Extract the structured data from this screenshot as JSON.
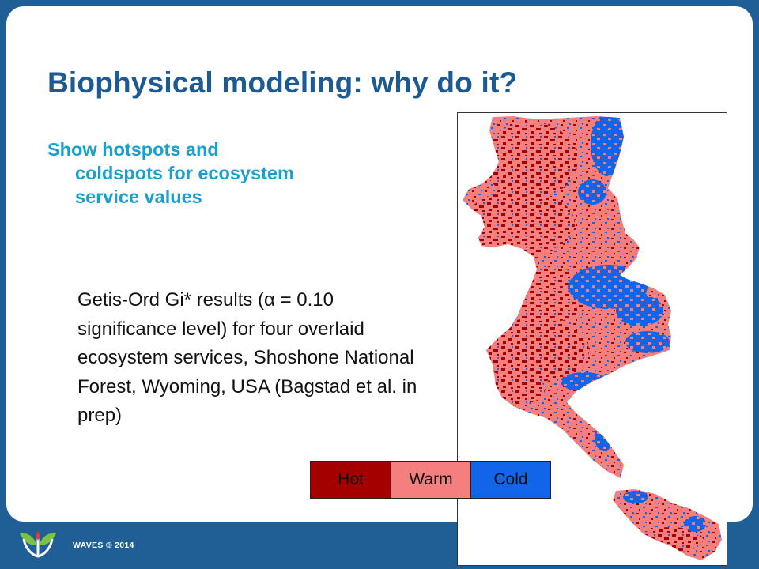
{
  "slide": {
    "title": "Biophysical modeling: why do it?",
    "subtitle": "Show hotspots and coldspots for ecosystem service values",
    "caption": "Getis-Ord Gi* results (α = 0.10 significance level) for four overlaid ecosystem services, Shoshone National Forest, Wyoming, USA (Bagstad et al. in prep)"
  },
  "legend": [
    {
      "label": "Hot",
      "color": "#a40000"
    },
    {
      "label": "Warm",
      "color": "#f47f7f"
    },
    {
      "label": "Cold",
      "color": "#1264e8"
    }
  ],
  "map": {
    "colors": {
      "hot": "#a40000",
      "warm": "#f47f7f",
      "cold": "#1264e8"
    }
  },
  "footer": {
    "copyright": "WAVES © 2014",
    "logo_icon": "leaf-sprout-icon"
  },
  "theme": {
    "background": "#1f5f96",
    "title_color": "#1c5a93",
    "subtitle_color": "#1a9fcf"
  }
}
